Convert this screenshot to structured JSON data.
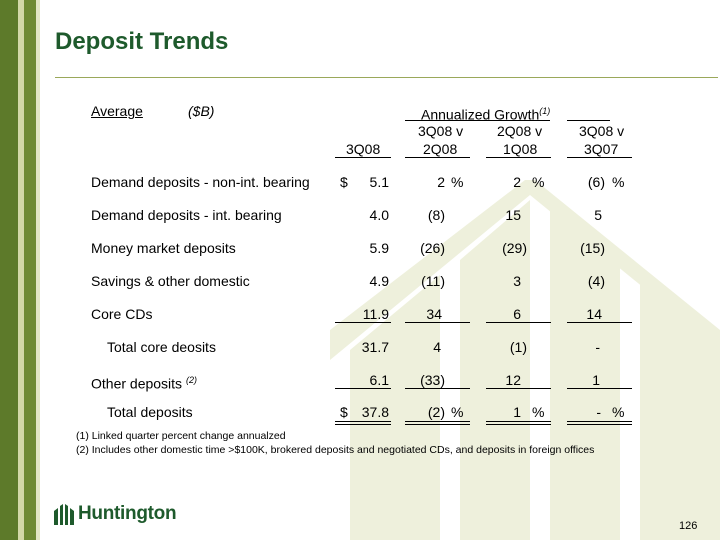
{
  "title": "Deposit Trends",
  "header": {
    "average": "Average",
    "units": "($B)",
    "growth_label": "Annualized Growth",
    "growth_note": "(1)",
    "cols": [
      {
        "line1": "",
        "line2": "3Q08"
      },
      {
        "line1": "3Q08 v",
        "line2": "2Q08"
      },
      {
        "line1": "2Q08 v",
        "line2": "1Q08"
      },
      {
        "line1": "3Q08 v",
        "line2": "3Q07"
      }
    ]
  },
  "rows": [
    {
      "label": "Demand deposits - non-int. bearing",
      "note": "",
      "dollar": "$",
      "val": "5.1",
      "g1": "2",
      "g1p": "%",
      "g2": "2",
      "g2p": "%",
      "g3": "(6)",
      "g3p": "%"
    },
    {
      "label": "Demand deposits - int. bearing",
      "note": "",
      "dollar": "",
      "val": "4.0",
      "g1": "(8)",
      "g1p": "",
      "g2": "15",
      "g2p": "",
      "g3": "5",
      "g3p": ""
    },
    {
      "label": "Money market deposits",
      "note": "",
      "dollar": "",
      "val": "5.9",
      "g1": "(26)",
      "g1p": "",
      "g2": "(29)",
      "g2p": "",
      "g3": "(15)",
      "g3p": ""
    },
    {
      "label": "Savings & other domestic",
      "note": "",
      "dollar": "",
      "val": "4.9",
      "g1": "(11)",
      "g1p": "",
      "g2": "3",
      "g2p": "",
      "g3": "(4)",
      "g3p": ""
    },
    {
      "label": "Core CDs",
      "note": "",
      "dollar": "",
      "val": "11.9",
      "g1": "34",
      "g1p": "",
      "g2": "6",
      "g2p": "",
      "g3": "14",
      "g3p": ""
    },
    {
      "label": "Total core deosits",
      "note": "",
      "dollar": "",
      "val": "31.7",
      "g1": "4",
      "g1p": "",
      "g2": "(1)",
      "g2p": "",
      "g3": "-",
      "g3p": ""
    },
    {
      "label": "Other deposits",
      "note": "(2)",
      "dollar": "",
      "val": "6.1",
      "g1": "(33)",
      "g1p": "",
      "g2": "12",
      "g2p": "",
      "g3": "1",
      "g3p": ""
    },
    {
      "label": "Total deposits",
      "note": "",
      "dollar": "$",
      "val": "37.8",
      "g1": "(2)",
      "g1p": "%",
      "g2": "1",
      "g2p": "%",
      "g3": "-",
      "g3p": "%"
    }
  ],
  "footnotes": [
    "(1)  Linked quarter percent change annualzed",
    "(2)  Includes other domestic time >$100K, brokered deposits and negotiated CDs, and deposits in foreign offices"
  ],
  "logo": "Huntington",
  "page_number": "126",
  "colors": {
    "brand_green": "#1e5a2c",
    "stripe": "#5d7a2a",
    "watermark": "#eef0dc"
  }
}
